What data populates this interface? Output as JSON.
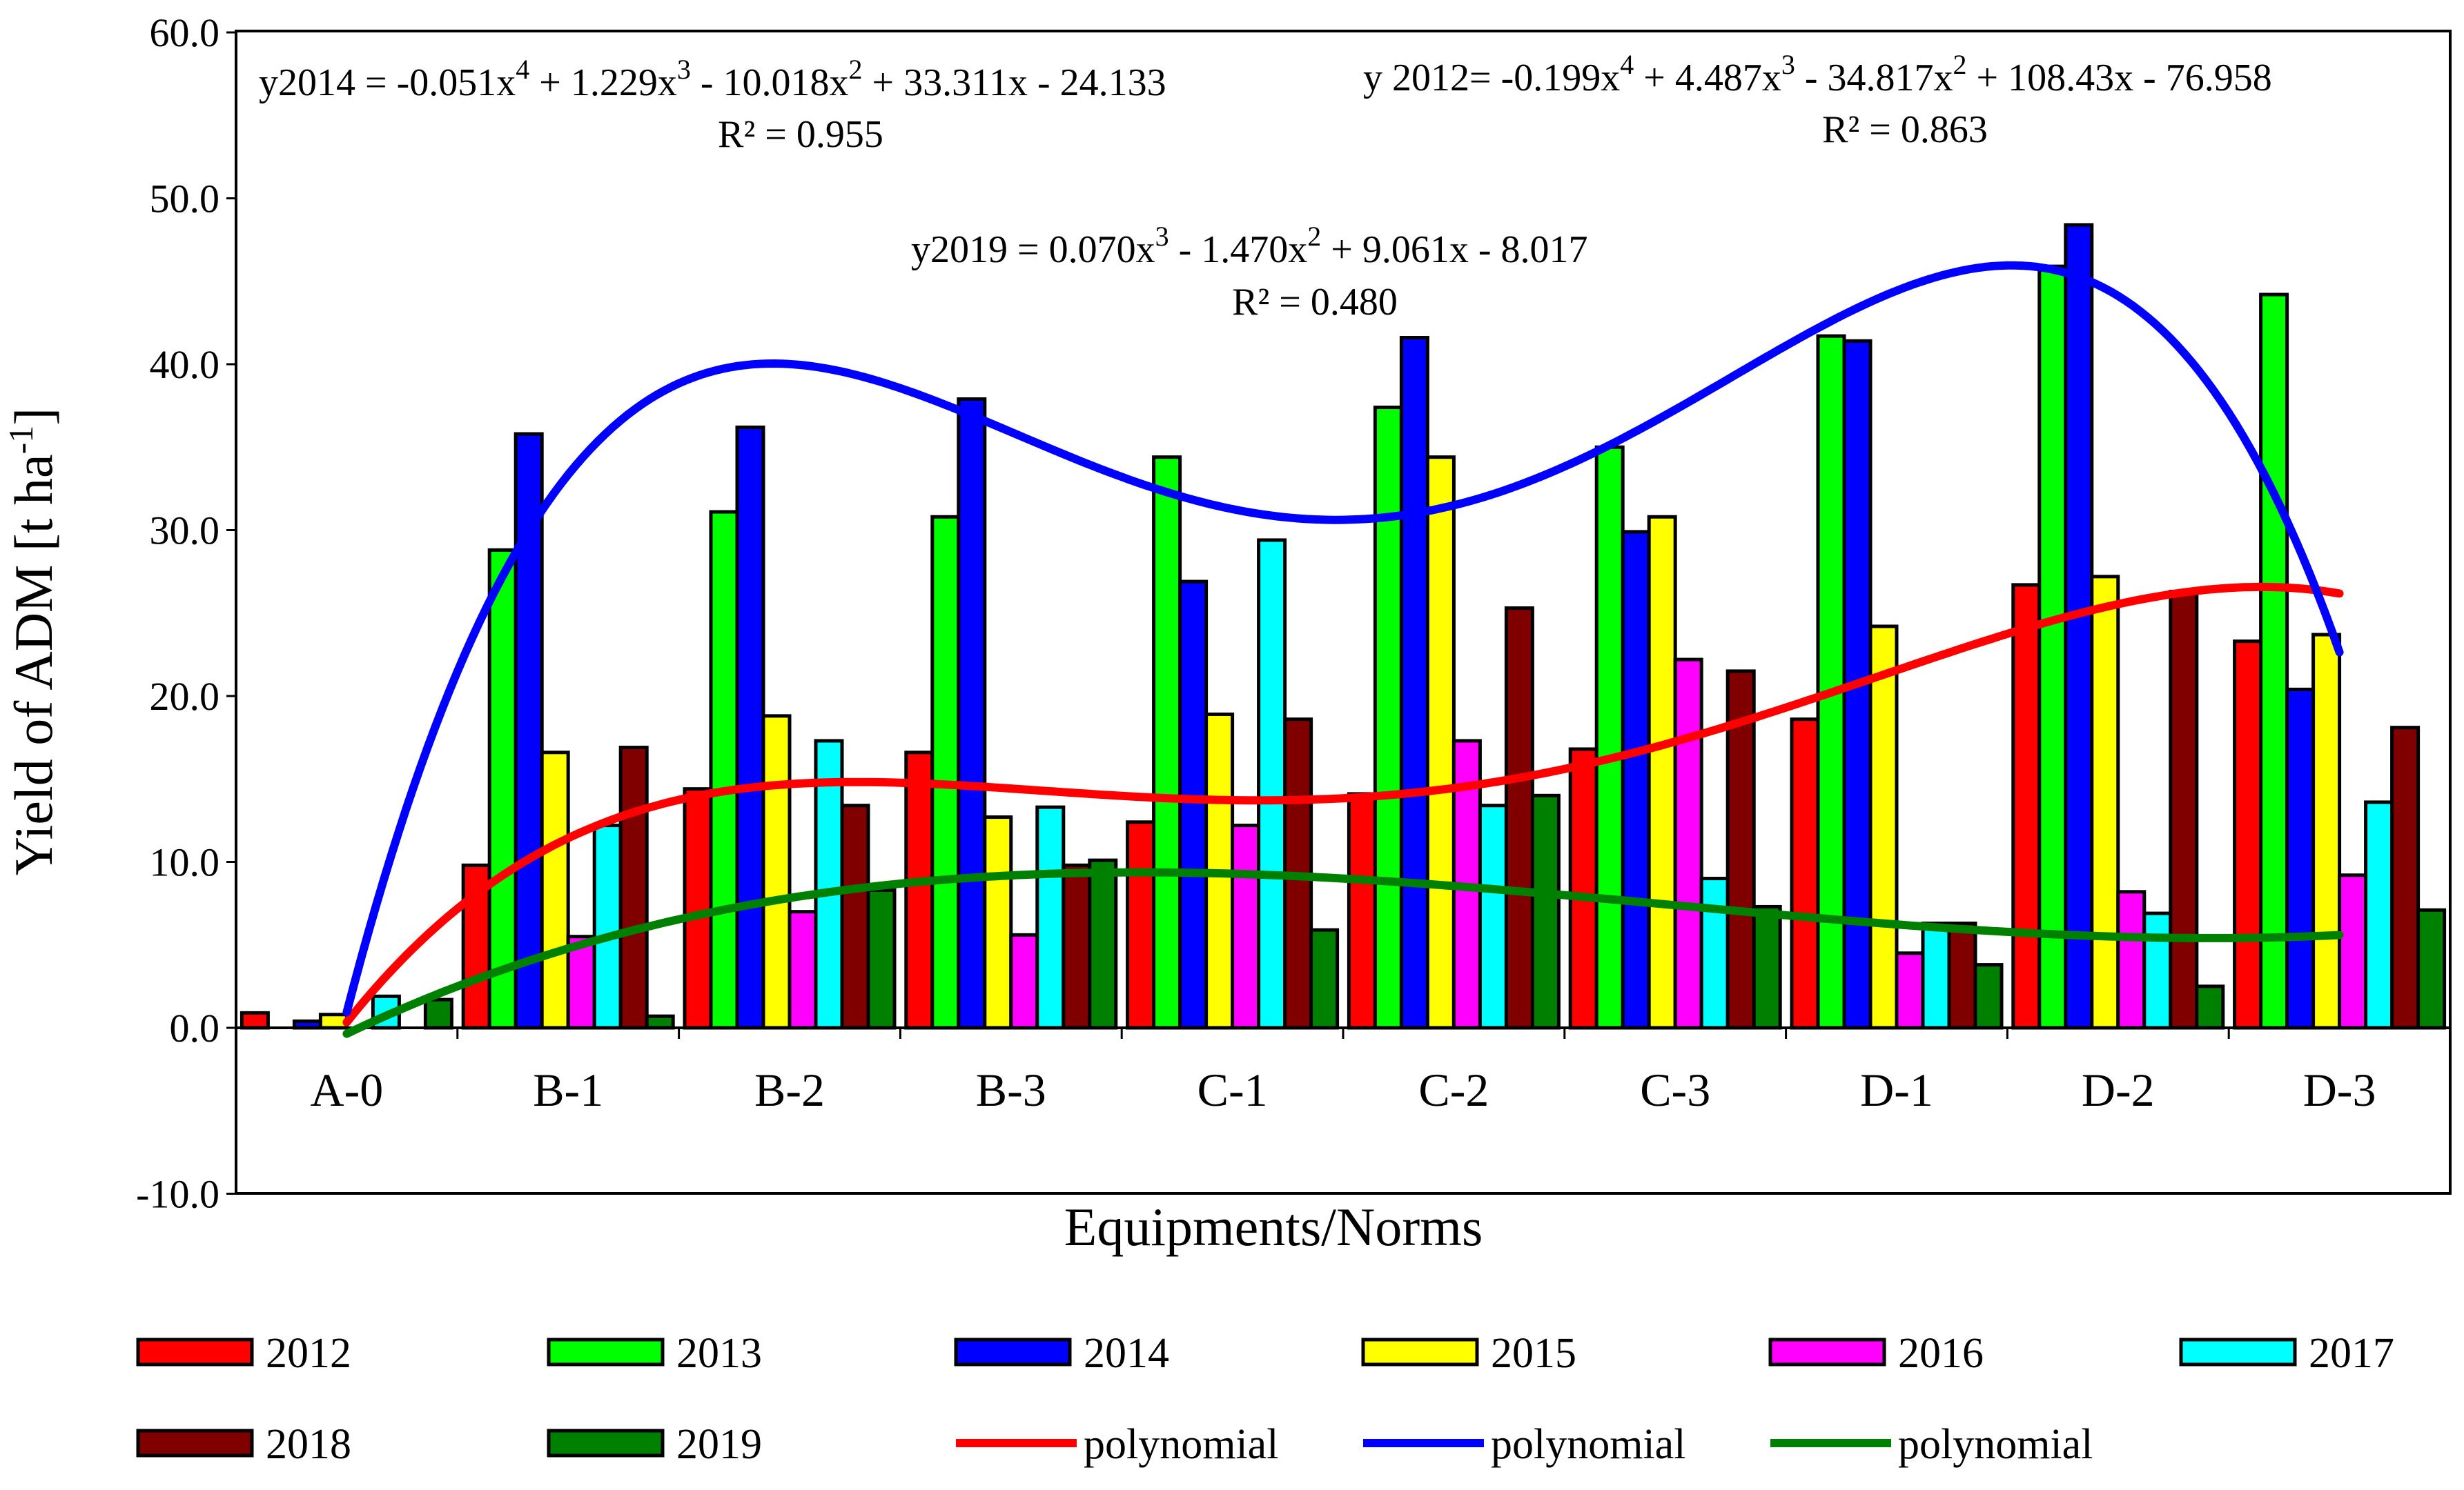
{
  "chart_data": {
    "type": "bar",
    "xlabel": "Equipments/Norms",
    "ylabel": "Yield of ADM [t ha",
    "ylabel_sup": "-1",
    "ylabel_end": "]",
    "ylim": [
      -10,
      60
    ],
    "yticks": [
      "-10.0",
      "0.0",
      "10.0",
      "20.0",
      "30.0",
      "40.0",
      "50.0",
      "60.0"
    ],
    "ytick_values": [
      -10,
      0,
      10,
      20,
      30,
      40,
      50,
      60
    ],
    "categories": [
      "A-0",
      "B-1",
      "B-2",
      "B-3",
      "C-1",
      "C-2",
      "C-3",
      "D-1",
      "D-2",
      "D-3"
    ],
    "series": [
      {
        "name": "2012",
        "color": "#ff0000",
        "values": [
          0.9,
          9.8,
          14.4,
          16.6,
          12.4,
          14.1,
          16.8,
          18.6,
          26.7,
          23.3
        ]
      },
      {
        "name": "2013",
        "color": "#00ff00",
        "values": [
          0.0,
          28.8,
          31.1,
          30.8,
          34.4,
          37.4,
          35.0,
          41.7,
          45.9,
          44.2
        ]
      },
      {
        "name": "2014",
        "color": "#0000ff",
        "values": [
          0.4,
          35.8,
          36.2,
          37.9,
          26.9,
          41.6,
          29.9,
          41.4,
          48.4,
          20.4
        ]
      },
      {
        "name": "2015",
        "color": "#ffff00",
        "values": [
          0.8,
          16.6,
          18.8,
          12.7,
          18.9,
          34.4,
          30.8,
          24.2,
          27.2,
          23.7
        ]
      },
      {
        "name": "2016",
        "color": "#ff00ff",
        "values": [
          0.0,
          5.5,
          7.0,
          5.6,
          12.2,
          17.3,
          22.2,
          4.5,
          8.2,
          9.2
        ]
      },
      {
        "name": "2017",
        "color": "#00ffff",
        "values": [
          1.9,
          12.2,
          17.3,
          13.3,
          29.4,
          13.4,
          9.0,
          6.3,
          6.9,
          13.6
        ]
      },
      {
        "name": "2018",
        "color": "#800000",
        "values": [
          0.0,
          16.9,
          13.4,
          9.8,
          18.6,
          25.3,
          21.5,
          6.3,
          26.3,
          18.1
        ]
      },
      {
        "name": "2019",
        "color": "#008000",
        "values": [
          1.7,
          0.7,
          8.3,
          10.1,
          5.9,
          14.0,
          7.3,
          3.8,
          2.5,
          7.1
        ]
      }
    ],
    "trendlines": [
      {
        "name": "polynomial",
        "color": "#ff0000",
        "coef": [
          -24.133,
          33.311,
          -10.018,
          1.229,
          -0.051
        ],
        "label_key": "2014"
      },
      {
        "name": "polynomial",
        "color": "#0000ff",
        "coef": [
          -76.958,
          108.43,
          -34.817,
          4.487,
          -0.199
        ],
        "label_key": "2012"
      },
      {
        "name": "polynomial",
        "color": "#008000",
        "coef": [
          -8.017,
          9.061,
          -1.47,
          0.07
        ],
        "label_key": "2019"
      }
    ],
    "equations": [
      {
        "prefix": "y2014 = -0.051x",
        "s1": "4",
        "m1": " + 1.229x",
        "s2": "3",
        "m2": " - 10.018x",
        "s3": "2",
        "rest": " + 33.311x - 24.133",
        "r2": "R² = 0.955"
      },
      {
        "prefix": "y 2012= -0.199x",
        "s1": "4",
        "m1": " + 4.487x",
        "s2": "3",
        "m2": " - 34.817x",
        "s3": "2",
        "rest": " + 108.43x - 76.958",
        "r2": "R² = 0.863"
      },
      {
        "prefix": "y2019 = 0.070x",
        "s1": "3",
        "m1": " - 1.470x",
        "s2": "2",
        "m2": " + 9.061x - 8.017",
        "s3": "",
        "rest": "",
        "r2": "R² = 0.480"
      }
    ],
    "legend": [
      "2012",
      "2013",
      "2014",
      "2015",
      "2016",
      "2017",
      "2018",
      "2019",
      "polynomial",
      "polynomial",
      "polynomial"
    ]
  }
}
